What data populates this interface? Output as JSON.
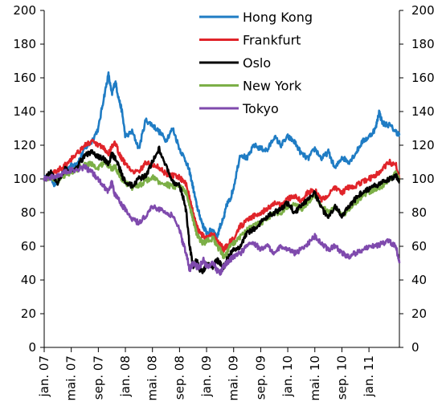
{
  "chart_data": {
    "type": "line",
    "title": "",
    "xlabel": "",
    "ylabel": "",
    "ylim": [
      0,
      200
    ],
    "y_ticks": [
      0,
      20,
      40,
      60,
      80,
      100,
      120,
      140,
      160,
      180,
      200
    ],
    "y_tick_labels": [
      "0",
      "20",
      "40",
      "60",
      "80",
      "100",
      "120",
      "140",
      "160",
      "180",
      "200"
    ],
    "secondary_y_axis": true,
    "x_tick_labels": [
      "jan. 07",
      "mai. 07",
      "sep. 07",
      "jan. 08",
      "mai. 08",
      "sep. 08",
      "jan. 09",
      "mai. 09",
      "sep. 09",
      "jan. 10",
      "mai. 10",
      "sep. 10",
      "jan. 11"
    ],
    "x_tick_months": [
      0,
      4,
      8,
      12,
      16,
      20,
      24,
      28,
      32,
      36,
      40,
      44,
      48
    ],
    "x_range_months": [
      0,
      52.5
    ],
    "grid": false,
    "legend_position": "top-center",
    "series": [
      {
        "name": "Hong Kong",
        "color": "#1f7cc4",
        "x": [
          0,
          1,
          1.5,
          2,
          3,
          4,
          5,
          6,
          7,
          8,
          8.8,
          9.5,
          10,
          10.5,
          11,
          11.5,
          12,
          13,
          14,
          15,
          16,
          17,
          18,
          19,
          20,
          21,
          21.5,
          22,
          22.5,
          23,
          23.5,
          24,
          25,
          25.5,
          26,
          26.5,
          27,
          27.5,
          28,
          29,
          30,
          31,
          32,
          33,
          34,
          35,
          36,
          37,
          38,
          39,
          40,
          41,
          42,
          43,
          44,
          45,
          46,
          47,
          48,
          49,
          49.5,
          50,
          51,
          52,
          52.5
        ],
        "y": [
          100,
          102,
          96,
          100,
          105,
          108,
          110,
          118,
          122,
          130,
          148,
          162,
          150,
          158,
          148,
          140,
          125,
          128,
          118,
          135,
          132,
          128,
          123,
          130,
          118,
          110,
          104,
          95,
          85,
          78,
          72,
          68,
          70,
          65,
          72,
          76,
          85,
          88,
          95,
          115,
          112,
          120,
          118,
          117,
          125,
          120,
          125,
          122,
          115,
          112,
          118,
          112,
          116,
          106,
          113,
          110,
          115,
          122,
          125,
          130,
          140,
          133,
          132,
          128,
          126
        ]
      },
      {
        "name": "Frankfurt",
        "color": "#e0242a",
        "x": [
          0,
          1,
          2,
          3,
          4,
          5,
          6,
          7,
          8,
          8.8,
          9.5,
          10,
          10.5,
          11,
          11.5,
          12,
          13,
          14,
          15,
          16,
          17,
          18,
          19,
          20,
          21,
          21.5,
          22,
          22.5,
          23,
          23.5,
          24,
          25,
          25.5,
          26,
          26.5,
          27,
          27.5,
          28,
          29,
          30,
          31,
          32,
          33,
          34,
          35,
          36,
          37,
          38,
          39,
          40,
          41,
          42,
          43,
          44,
          45,
          46,
          47,
          48,
          49,
          50,
          51,
          52,
          52.5
        ],
        "y": [
          100,
          103,
          105,
          108,
          112,
          116,
          120,
          122,
          120,
          118,
          115,
          119,
          121,
          116,
          112,
          109,
          105,
          104,
          110,
          108,
          107,
          103,
          102,
          101,
          97,
          88,
          80,
          72,
          68,
          66,
          65,
          67,
          63,
          62,
          58,
          60,
          63,
          65,
          72,
          75,
          78,
          80,
          82,
          86,
          84,
          88,
          90,
          87,
          92,
          93,
          88,
          90,
          95,
          92,
          95,
          96,
          98,
          100,
          102,
          106,
          110,
          108,
          100
        ]
      },
      {
        "name": "Oslo",
        "color": "#000000",
        "x": [
          0,
          1,
          2,
          3,
          4,
          5,
          6,
          7,
          8,
          8.8,
          9.5,
          10,
          10.5,
          11,
          11.5,
          12,
          13,
          14,
          15,
          16,
          17,
          18,
          19,
          20,
          20.5,
          21,
          21.5,
          22,
          22.5,
          23,
          23.5,
          24,
          25,
          25.5,
          26,
          26.5,
          27,
          27.5,
          28,
          29,
          30,
          31,
          32,
          33,
          34,
          35,
          36,
          37,
          38,
          39,
          40,
          41,
          42,
          43,
          44,
          45,
          46,
          47,
          48,
          49,
          50,
          51,
          52,
          52.5
        ],
        "y": [
          100,
          104,
          98,
          106,
          104,
          108,
          114,
          116,
          113,
          112,
          108,
          115,
          112,
          108,
          102,
          98,
          96,
          100,
          102,
          110,
          118,
          108,
          98,
          96,
          90,
          80,
          60,
          48,
          52,
          46,
          45,
          50,
          48,
          52,
          50,
          48,
          52,
          55,
          58,
          60,
          68,
          70,
          74,
          78,
          80,
          82,
          86,
          80,
          84,
          88,
          92,
          82,
          78,
          84,
          78,
          84,
          88,
          92,
          94,
          96,
          98,
          100,
          102,
          98
        ]
      },
      {
        "name": "New York",
        "color": "#7caf47",
        "x": [
          0,
          1,
          2,
          3,
          4,
          5,
          6,
          7,
          8,
          8.8,
          9.5,
          10,
          10.5,
          11,
          11.5,
          12,
          13,
          14,
          15,
          16,
          17,
          18,
          19,
          20,
          21,
          21.5,
          22,
          22.5,
          23,
          23.5,
          24,
          25,
          25.5,
          26,
          26.5,
          27,
          27.5,
          28,
          29,
          30,
          31,
          32,
          33,
          34,
          35,
          36,
          37,
          38,
          39,
          40,
          41,
          42,
          43,
          44,
          45,
          46,
          47,
          48,
          49,
          50,
          51,
          52,
          52.5
        ],
        "y": [
          100,
          101,
          99,
          102,
          104,
          106,
          108,
          109,
          106,
          110,
          108,
          106,
          107,
          103,
          100,
          98,
          95,
          96,
          99,
          101,
          98,
          97,
          95,
          96,
          92,
          84,
          76,
          68,
          64,
          62,
          63,
          65,
          60,
          58,
          54,
          56,
          60,
          62,
          66,
          70,
          72,
          74,
          76,
          80,
          80,
          84,
          86,
          82,
          86,
          90,
          84,
          80,
          84,
          78,
          82,
          86,
          90,
          92,
          94,
          96,
          100,
          104,
          100
        ]
      },
      {
        "name": "Tokyo",
        "color": "#7f4aad",
        "x": [
          0,
          1,
          2,
          3,
          4,
          5,
          6,
          7,
          8,
          8.8,
          9.5,
          10,
          10.5,
          11,
          11.5,
          12,
          13,
          14,
          15,
          16,
          17,
          18,
          19,
          20,
          20.5,
          21,
          21.5,
          22,
          22.5,
          23,
          23.5,
          24,
          25,
          25.5,
          26,
          26.5,
          27,
          27.5,
          28,
          29,
          30,
          31,
          32,
          33,
          34,
          35,
          36,
          37,
          38,
          39,
          40,
          41,
          42,
          43,
          44,
          45,
          46,
          47,
          48,
          49,
          50,
          51,
          52,
          52.5
        ],
        "y": [
          100,
          101,
          102,
          104,
          105,
          106,
          107,
          104,
          100,
          96,
          92,
          98,
          90,
          88,
          84,
          82,
          76,
          74,
          78,
          84,
          82,
          80,
          78,
          70,
          62,
          56,
          46,
          50,
          48,
          48,
          52,
          48,
          50,
          46,
          44,
          48,
          50,
          52,
          54,
          56,
          60,
          62,
          58,
          60,
          56,
          60,
          58,
          56,
          58,
          62,
          66,
          62,
          58,
          60,
          56,
          54,
          56,
          58,
          60,
          60,
          62,
          63,
          60,
          50
        ]
      }
    ]
  }
}
